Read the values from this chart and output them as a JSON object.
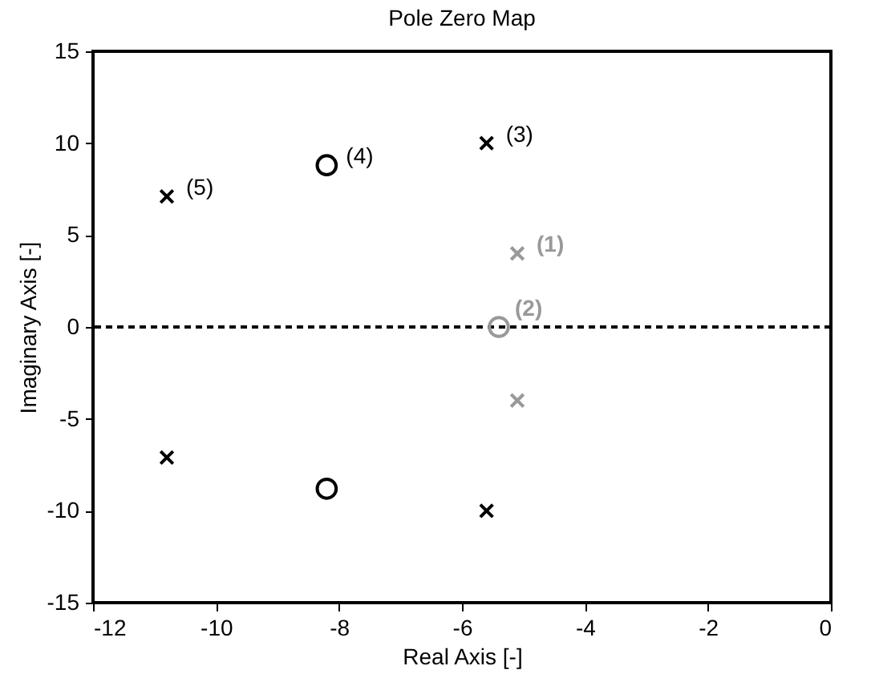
{
  "chart_data": {
    "type": "scatter",
    "title": "Pole Zero Map",
    "xlabel": "Real Axis [-]",
    "ylabel": "Imaginary Axis [-]",
    "xlim": [
      -12,
      0
    ],
    "xticks": [
      -12,
      -10,
      -8,
      -6,
      -4,
      -2,
      0
    ],
    "ylim": [
      -15,
      15
    ],
    "yticks": [
      -15,
      -10,
      -5,
      0,
      5,
      10,
      15
    ],
    "grid": false,
    "series": [
      {
        "color": "#000000",
        "marker": "cross",
        "x": [
          -10.8,
          -10.8,
          -5.6,
          -5.6
        ],
        "values": [
          7.1,
          -7.1,
          10,
          -10
        ]
      },
      {
        "color": "#000000",
        "marker": "circle",
        "x": [
          -8.2,
          -8.2
        ],
        "values": [
          8.8,
          -8.8
        ]
      },
      {
        "color": "#999999",
        "marker": "cross",
        "x": [
          -5.1,
          -5.1
        ],
        "values": [
          4,
          -4
        ]
      },
      {
        "color": "#999999",
        "marker": "circle",
        "x": [
          -5.4
        ],
        "values": [
          0
        ]
      }
    ],
    "ref_lines": [
      {
        "axis": "y",
        "value": 0,
        "color": "#000000",
        "line_style": "dashed"
      }
    ],
    "annotations": [
      {
        "text": "(1)",
        "x": -5.1,
        "y": 4
      },
      {
        "text": "(2)",
        "x": -5.4,
        "y": 0
      },
      {
        "text": "(3)",
        "x": -5.6,
        "y": 10
      },
      {
        "text": "(4)",
        "x": -8.2,
        "y": 8.8
      },
      {
        "text": "(5)",
        "x": -10.8,
        "y": 7.1
      }
    ]
  }
}
